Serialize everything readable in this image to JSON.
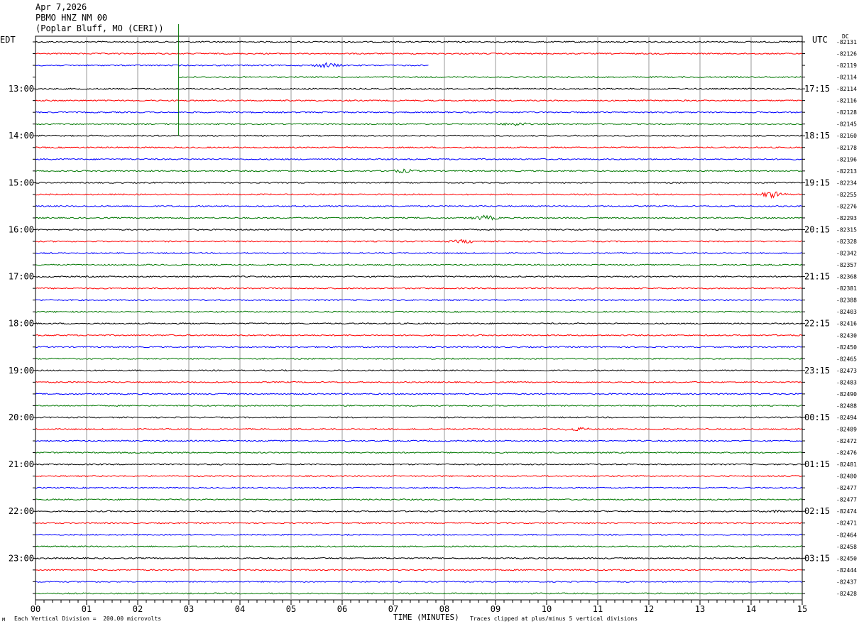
{
  "header": {
    "date": "Apr 7,2026",
    "station": "PBMO HNZ NM 00",
    "location": "(Poplar Bluff, MO (CERI))"
  },
  "left_timezone": "EDT",
  "right_timezone": "UTC",
  "dc_label": "DC",
  "footer": {
    "scale_note": "Each Vertical Division =  200.00 microvolts",
    "axis_title": "TIME (MINUTES)",
    "clip_note": "Traces clipped at plus/minus 5 vertical divisions",
    "corner_mark": "M"
  },
  "colors": {
    "black": "#000000",
    "red": "#ff0000",
    "blue": "#0000ff",
    "green": "#007700",
    "grid": "#999999"
  },
  "chart_data": {
    "type": "line",
    "title": "PBMO HNZ NM 00",
    "xlabel": "TIME (MINUTES)",
    "xlim": [
      0,
      15
    ],
    "x_ticks": [
      "00",
      "01",
      "02",
      "03",
      "04",
      "05",
      "06",
      "07",
      "08",
      "09",
      "10",
      "11",
      "12",
      "13",
      "14",
      "15"
    ],
    "line_minutes": 15,
    "trace_colors": [
      "black",
      "red",
      "blue",
      "green"
    ],
    "left_hour_labels": [
      {
        "line": 4,
        "label": "13:00"
      },
      {
        "line": 8,
        "label": "14:00"
      },
      {
        "line": 12,
        "label": "15:00"
      },
      {
        "line": 16,
        "label": "16:00"
      },
      {
        "line": 20,
        "label": "17:00"
      },
      {
        "line": 24,
        "label": "18:00"
      },
      {
        "line": 28,
        "label": "19:00"
      },
      {
        "line": 32,
        "label": "20:00"
      },
      {
        "line": 36,
        "label": "21:00"
      },
      {
        "line": 40,
        "label": "22:00"
      },
      {
        "line": 44,
        "label": "23:00"
      }
    ],
    "right_hour_labels": [
      {
        "line": 4,
        "label": "17:15"
      },
      {
        "line": 8,
        "label": "18:15"
      },
      {
        "line": 12,
        "label": "19:15"
      },
      {
        "line": 16,
        "label": "20:15"
      },
      {
        "line": 20,
        "label": "21:15"
      },
      {
        "line": 24,
        "label": "22:15"
      },
      {
        "line": 28,
        "label": "23:15"
      },
      {
        "line": 32,
        "label": "00:15"
      },
      {
        "line": 36,
        "label": "01:15"
      },
      {
        "line": 40,
        "label": "02:15"
      },
      {
        "line": 44,
        "label": "03:15"
      }
    ],
    "dc_offsets": [
      "-82131",
      "-82126",
      "-82119",
      "-82114",
      "-82114",
      "-82116",
      "-82128",
      "-82145",
      "-82160",
      "-82178",
      "-82196",
      "-82213",
      "-82234",
      "-82255",
      "-82276",
      "-82293",
      "-82315",
      "-82328",
      "-82342",
      "-82357",
      "-82368",
      "-82381",
      "-82388",
      "-82403",
      "-82416",
      "-82430",
      "-82450",
      "-82465",
      "-82473",
      "-82483",
      "-82490",
      "-82488",
      "-82494",
      "-82489",
      "-82472",
      "-82476",
      "-82481",
      "-82480",
      "-82477",
      "-82477",
      "-82474",
      "-82471",
      "-82464",
      "-82458",
      "-82450",
      "-82444",
      "-82437",
      "-82428"
    ],
    "trace_segments": [
      {
        "line": 2,
        "start_min": 0,
        "end_min": 7.7
      },
      {
        "line": 3,
        "start_min": 2.8,
        "end_min": 15
      }
    ],
    "events": [
      {
        "line": 2,
        "minute": 5.7,
        "amplitude": 3
      },
      {
        "line": 13,
        "minute": 14.4,
        "amplitude": 4
      },
      {
        "line": 15,
        "minute": 8.8,
        "amplitude": 3
      },
      {
        "line": 17,
        "minute": 8.4,
        "amplitude": 2
      },
      {
        "line": 33,
        "minute": 10.6,
        "amplitude": 2
      },
      {
        "line": 40,
        "minute": 14.5,
        "amplitude": 1
      },
      {
        "line": 7,
        "minute": 9.4,
        "amplitude": 2
      },
      {
        "line": 11,
        "minute": 7.2,
        "amplitude": 2
      }
    ],
    "marker": {
      "minute": 2.8,
      "from_line": -2,
      "to_line": 8
    }
  }
}
